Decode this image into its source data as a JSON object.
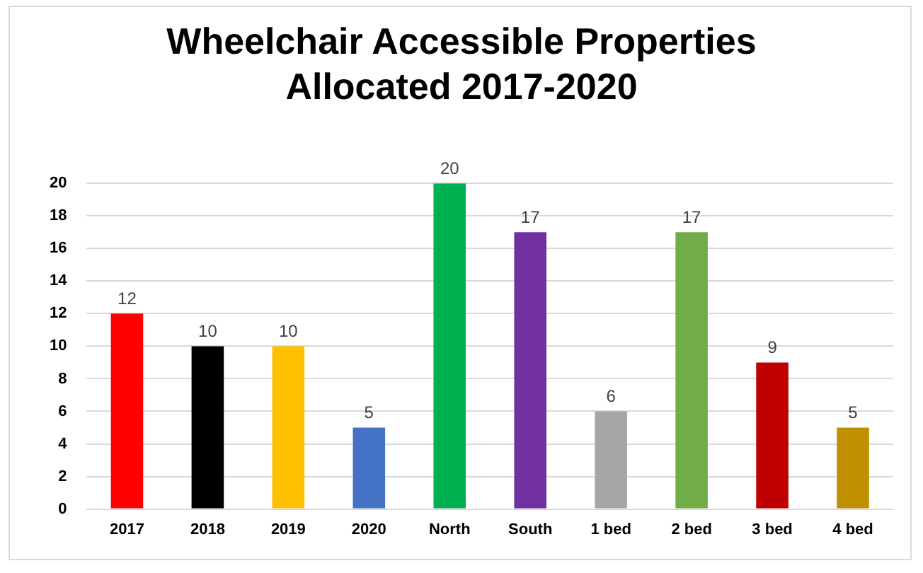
{
  "chart_data": {
    "type": "bar",
    "title": "Wheelchair Accessible Properties Allocated 2017-2020",
    "categories": [
      "2017",
      "2018",
      "2019",
      "2020",
      "North",
      "South",
      "1 bed",
      "2 bed",
      "3 bed",
      "4 bed"
    ],
    "values": [
      12,
      10,
      10,
      5,
      20,
      17,
      6,
      17,
      9,
      5
    ],
    "colors": [
      "#ff0000",
      "#000000",
      "#ffc000",
      "#4472c4",
      "#00b050",
      "#7030a0",
      "#a6a6a6",
      "#70ad47",
      "#c00000",
      "#bf9000"
    ],
    "ylim": [
      0,
      20
    ],
    "yticks": [
      0,
      2,
      4,
      6,
      8,
      10,
      12,
      14,
      16,
      18,
      20
    ],
    "grid": "y",
    "data_labels": true,
    "legend": false
  }
}
